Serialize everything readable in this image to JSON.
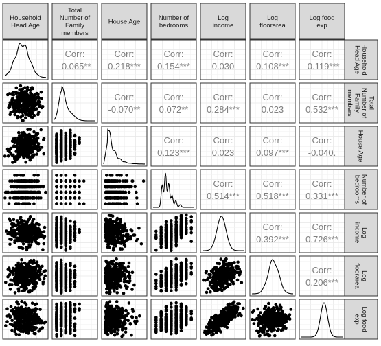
{
  "chart_data": {
    "type": "scatter-matrix",
    "variables": [
      "Household Head Age",
      "Total Number of Family members",
      "House Age",
      "Number of bedrooms",
      "Log income",
      "Log floorarea",
      "Log food exp"
    ],
    "column_labels": [
      [
        "Household",
        "Head Age"
      ],
      [
        "Total",
        "Number of",
        "Family",
        "members"
      ],
      [
        "House Age"
      ],
      [
        "Number of",
        "bedrooms"
      ],
      [
        "Log",
        "income"
      ],
      [
        "Log",
        "floorarea"
      ],
      [
        "Log food",
        "exp"
      ]
    ],
    "row_labels": [
      [
        "Household",
        "Head Age"
      ],
      [
        "Total",
        "Number of",
        "Family",
        "members"
      ],
      [
        "House Age"
      ],
      [
        "Number of",
        "bedrooms"
      ],
      [
        "Log",
        "income"
      ],
      [
        "Log",
        "floorarea"
      ],
      [
        "Log food",
        "exp"
      ]
    ],
    "corr_label": "Corr:",
    "correlations": [
      {
        "row": 0,
        "col": 1,
        "value": "-0.065**"
      },
      {
        "row": 0,
        "col": 2,
        "value": "0.218***"
      },
      {
        "row": 0,
        "col": 3,
        "value": "0.154***"
      },
      {
        "row": 0,
        "col": 4,
        "value": "0.030"
      },
      {
        "row": 0,
        "col": 5,
        "value": "0.108***"
      },
      {
        "row": 0,
        "col": 6,
        "value": "-0.119***"
      },
      {
        "row": 1,
        "col": 2,
        "value": "-0.070**"
      },
      {
        "row": 1,
        "col": 3,
        "value": "0.072**"
      },
      {
        "row": 1,
        "col": 4,
        "value": "0.284***"
      },
      {
        "row": 1,
        "col": 5,
        "value": "0.023"
      },
      {
        "row": 1,
        "col": 6,
        "value": "0.532***"
      },
      {
        "row": 2,
        "col": 3,
        "value": "0.123***"
      },
      {
        "row": 2,
        "col": 4,
        "value": "0.023"
      },
      {
        "row": 2,
        "col": 5,
        "value": "0.097***"
      },
      {
        "row": 2,
        "col": 6,
        "value": "-0.040."
      },
      {
        "row": 3,
        "col": 4,
        "value": "0.514***"
      },
      {
        "row": 3,
        "col": 5,
        "value": "0.518***"
      },
      {
        "row": 3,
        "col": 6,
        "value": "0.331***"
      },
      {
        "row": 4,
        "col": 5,
        "value": "0.392***"
      },
      {
        "row": 4,
        "col": 6,
        "value": "0.726***"
      },
      {
        "row": 5,
        "col": 6,
        "value": "0.206***"
      }
    ],
    "diagonal": "density",
    "lower": "scatter",
    "upper": "correlation",
    "grid": true
  }
}
